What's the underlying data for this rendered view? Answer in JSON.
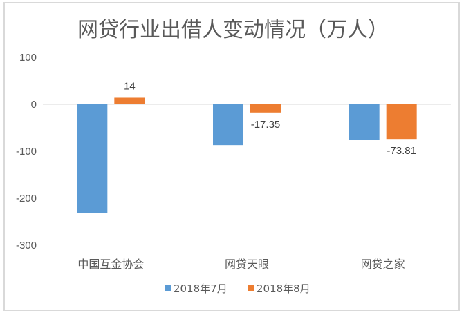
{
  "chart_data": {
    "type": "bar",
    "title": "网贷行业出借人变动情况（万人）",
    "categories": [
      "中国互金协会",
      "网贷天眼",
      "网贷之家"
    ],
    "series": [
      {
        "name": "2018年7月",
        "color": "#5b9bd5",
        "values": [
          -232,
          -87,
          -75
        ],
        "labels": [
          null,
          null,
          null
        ]
      },
      {
        "name": "2018年8月",
        "color": "#ed7d31",
        "values": [
          14,
          -17.35,
          -73.81
        ],
        "labels": [
          "14",
          "-17.35",
          "-73.81"
        ]
      }
    ],
    "yticks": [
      "100",
      "0",
      "-100",
      "-200",
      "-300"
    ],
    "ylim": [
      -300,
      100
    ],
    "grid": false,
    "legend": "bottom",
    "xlabel": "",
    "ylabel": ""
  }
}
